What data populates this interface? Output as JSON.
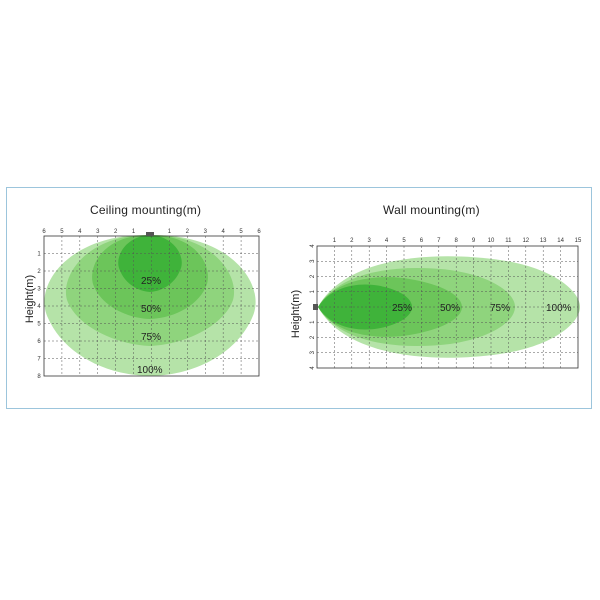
{
  "ceiling": {
    "title": "Ceiling mounting(m)",
    "ylabel": "Height(m)",
    "top_ticks": [
      "6",
      "5",
      "4",
      "3",
      "2",
      "1",
      "",
      "1",
      "2",
      "3",
      "4",
      "5",
      "6"
    ],
    "left_ticks": [
      "1",
      "2",
      "3",
      "4",
      "5",
      "6",
      "7",
      "8"
    ],
    "zone_labels": [
      "25%",
      "50%",
      "75%",
      "100%"
    ]
  },
  "wall": {
    "title": "Wall mounting(m)",
    "ylabel": "Height(m)",
    "top_ticks": [
      "1",
      "2",
      "3",
      "4",
      "5",
      "6",
      "7",
      "8",
      "9",
      "10",
      "11",
      "12",
      "13",
      "14",
      "15"
    ],
    "left_ticks": [
      "4",
      "3",
      "2",
      "1",
      "",
      "1",
      "2",
      "3",
      "4"
    ],
    "zone_labels": [
      "25%",
      "50%",
      "75%",
      "100%"
    ]
  },
  "colors": {
    "zone_100": "#b5e3a8",
    "zone_75": "#8fd47d",
    "zone_50": "#6cc55a",
    "zone_25": "#3fb33a",
    "lamp": "#555555",
    "frame": "#9cc5dc"
  }
}
